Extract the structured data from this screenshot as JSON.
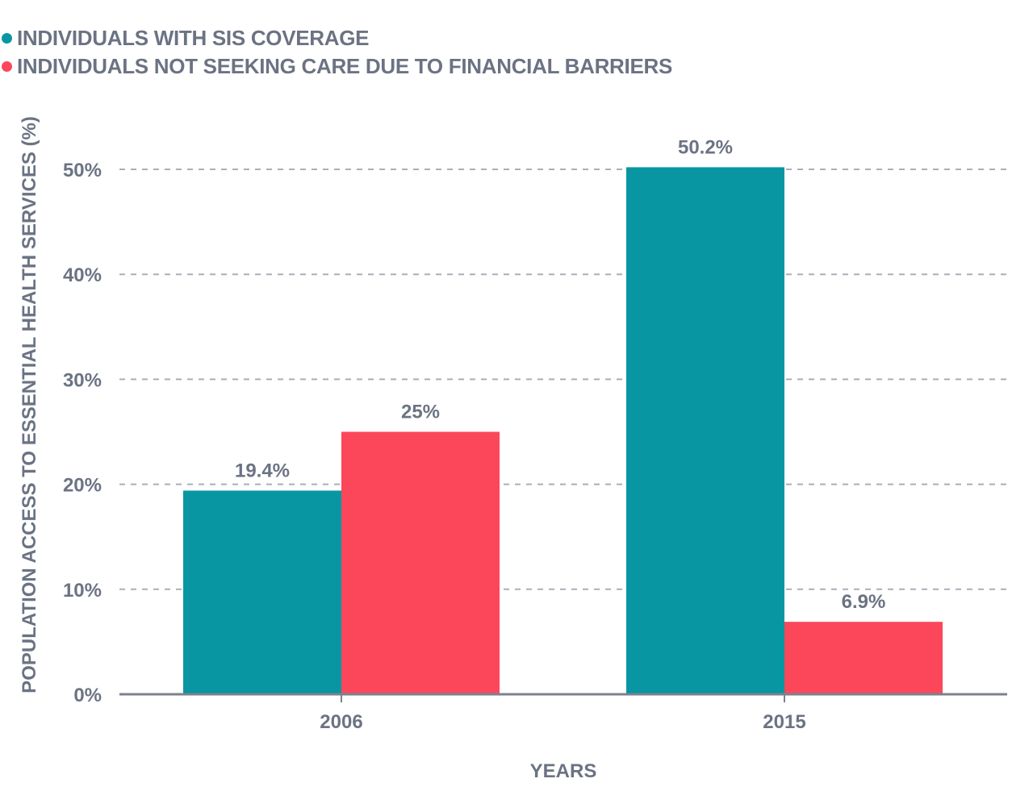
{
  "chart_data": {
    "type": "bar",
    "categories": [
      "2006",
      "2015"
    ],
    "series": [
      {
        "name": "INDIVIDUALS WITH SIS COVERAGE",
        "color": "#0896a3",
        "values": [
          19.4,
          50.2
        ],
        "labels": [
          "19.4%",
          "50.2%"
        ]
      },
      {
        "name": "INDIVIDUALS NOT SEEKING CARE DUE TO FINANCIAL BARRIERS",
        "color": "#fc475b",
        "values": [
          25,
          6.9
        ],
        "labels": [
          "25%",
          "6.9%"
        ]
      }
    ],
    "xlabel": "YEARS",
    "ylabel": "POPULATION ACCESS TO ESSENTIAL HEALTH SERVICES (%)",
    "ylim": [
      0,
      50
    ],
    "yticks": [
      0,
      10,
      20,
      30,
      40,
      50
    ],
    "ytick_labels": [
      "0%",
      "10%",
      "20%",
      "30%",
      "40%",
      "50%"
    ],
    "grid": true,
    "legend_position": "top-left"
  }
}
